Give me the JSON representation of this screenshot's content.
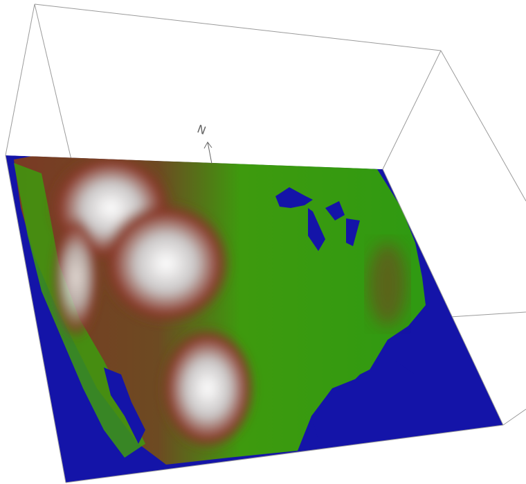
{
  "scene": {
    "background_color": "#ffffff",
    "bounding_box_color": "#9a9a9a",
    "ocean_color": "#1414a8",
    "lowland_color": "#3e9a0e",
    "midland_color": "#7a3a24",
    "highland_color": "#f2f2f2"
  },
  "north_arrow": {
    "label": "N",
    "icon": "north-arrow-icon"
  }
}
